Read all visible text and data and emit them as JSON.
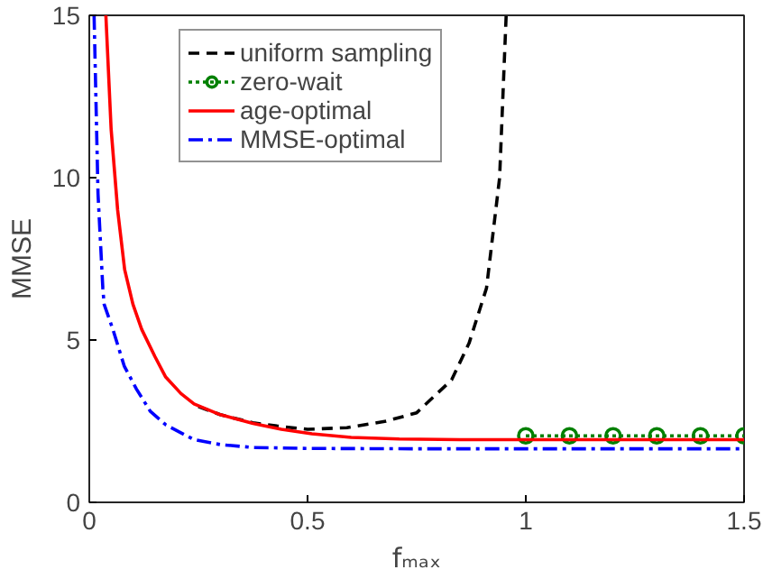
{
  "chart_data": {
    "type": "line",
    "xlabel": "fₘₐₓ",
    "ylabel": "MMSE",
    "xlim": [
      0,
      1.5
    ],
    "ylim": [
      0,
      15
    ],
    "xticks": [
      0,
      0.5,
      1,
      1.5
    ],
    "yticks": [
      0,
      5,
      10,
      15
    ],
    "grid": false,
    "legend": "top left",
    "series": [
      {
        "name": "uniform sampling",
        "color": "#000000",
        "line_style": "dashed",
        "marker": "none",
        "x": [
          0.25,
          0.3,
          0.375,
          0.43,
          0.5,
          0.59,
          0.68,
          0.75,
          0.83,
          0.87,
          0.91,
          0.94,
          0.955
        ],
        "values": [
          2.95,
          2.7,
          2.45,
          2.35,
          2.25,
          2.3,
          2.5,
          2.76,
          3.77,
          4.9,
          6.6,
          10.0,
          15.0
        ]
      },
      {
        "name": "zero-wait",
        "color": "#008000",
        "line_style": "dotted",
        "marker": "circle",
        "x": [
          1,
          1.1,
          1.2,
          1.3,
          1.4,
          1.5
        ],
        "values": [
          2.05,
          2.05,
          2.05,
          2.05,
          2.05,
          2.05
        ]
      },
      {
        "name": "age-optimal",
        "color": "#ff0000",
        "line_style": "solid",
        "marker": "none",
        "x": [
          0.038,
          0.05,
          0.065,
          0.081,
          0.1,
          0.12,
          0.15,
          0.175,
          0.21,
          0.24,
          0.3,
          0.375,
          0.44,
          0.51,
          0.6,
          0.71,
          0.85,
          1.0,
          1.2,
          1.5
        ],
        "values": [
          15.0,
          11.5,
          9.0,
          7.17,
          6.1,
          5.33,
          4.5,
          3.86,
          3.35,
          3.03,
          2.7,
          2.43,
          2.25,
          2.11,
          2.0,
          1.95,
          1.93,
          1.93,
          1.93,
          1.93
        ]
      },
      {
        "name": "MMSE-optimal",
        "color": "#0000ff",
        "line_style": "dashdot",
        "marker": "none",
        "x": [
          0.011,
          0.02,
          0.031,
          0.034,
          0.054,
          0.08,
          0.108,
          0.14,
          0.175,
          0.24,
          0.3,
          0.375,
          0.5,
          0.75,
          1.0,
          1.5
        ],
        "values": [
          15.0,
          9.5,
          6.6,
          6.1,
          5.33,
          4.2,
          3.49,
          2.8,
          2.39,
          1.93,
          1.78,
          1.69,
          1.66,
          1.65,
          1.65,
          1.65
        ]
      }
    ]
  }
}
